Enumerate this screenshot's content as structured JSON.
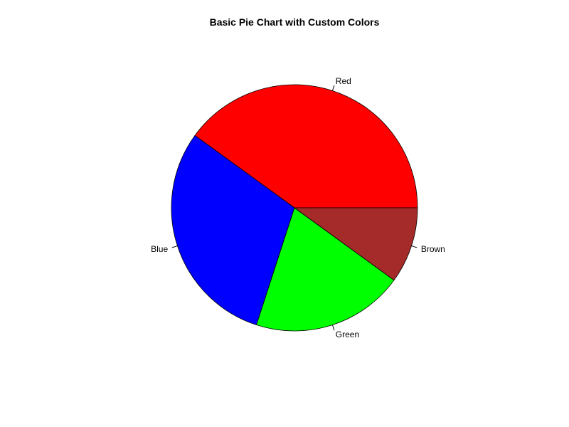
{
  "chart_data": {
    "type": "pie",
    "title": "Basic Pie Chart with Custom Colors",
    "start_angle_deg": 0,
    "direction": "counterclockwise",
    "slices": [
      {
        "label": "Red",
        "value": 40,
        "color": "#ff0000"
      },
      {
        "label": "Blue",
        "value": 30,
        "color": "#0000ff"
      },
      {
        "label": "Green",
        "value": 20,
        "color": "#00ff00"
      },
      {
        "label": "Brown",
        "value": 10,
        "color": "#a52a2a"
      }
    ],
    "border_color": "#000000",
    "legend": "none"
  }
}
